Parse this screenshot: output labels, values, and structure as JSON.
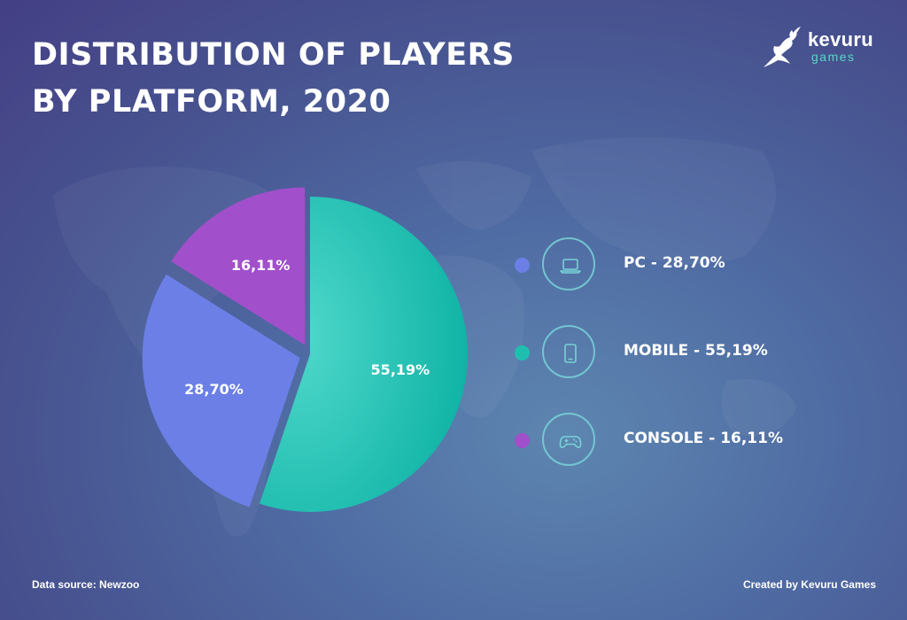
{
  "title": "DISTRIBUTION OF PLAYERS BY PLATFORM, 2020",
  "logo": {
    "name": "kevuru",
    "sub": "games"
  },
  "colors": {
    "pc": "#6b7fe6",
    "mobile": "#1fbfb0",
    "console": "#a24fcc",
    "ring": "#78d2d7"
  },
  "chart_data": {
    "type": "pie",
    "title": "DISTRIBUTION OF PLAYERS BY PLATFORM, 2020",
    "slices": [
      {
        "label": "Mobile",
        "value": 55.19,
        "display": "55,19%",
        "color": "#1fbfb0",
        "explode": false
      },
      {
        "label": "PC",
        "value": 28.7,
        "display": "28,70%",
        "color": "#6b7fe6",
        "explode": true
      },
      {
        "label": "Console",
        "value": 16.11,
        "display": "16,11%",
        "color": "#a24fcc",
        "explode": true
      }
    ],
    "start_angle": "12 o'clock",
    "direction": "clockwise"
  },
  "legend": [
    {
      "key": "pc",
      "label": "PC - 28,70%",
      "icon": "laptop-icon",
      "color": "#6b7fe6"
    },
    {
      "key": "mobile",
      "label": "MOBILE - 55,19%",
      "icon": "phone-icon",
      "color": "#1fbfb0"
    },
    {
      "key": "console",
      "label": "CONSOLE - 16,11%",
      "icon": "gamepad-icon",
      "color": "#a24fcc"
    }
  ],
  "footer": {
    "source": "Data source: Newzoo",
    "credit": "Created by Kevuru Games"
  }
}
